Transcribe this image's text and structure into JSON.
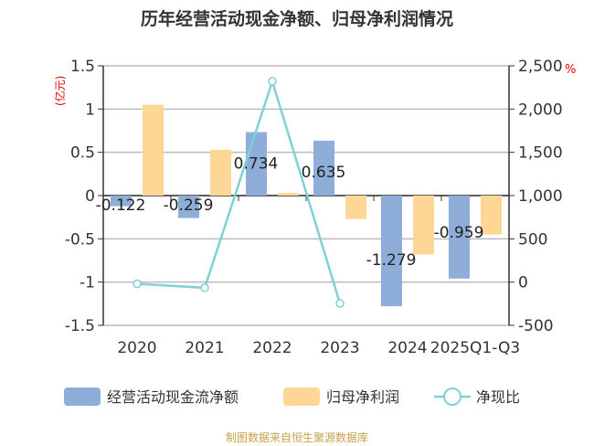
{
  "chart_data": {
    "type": "bar",
    "title": "历年经营活动现金净额、归母净利润情况",
    "categories": [
      "2020",
      "2021",
      "2022",
      "2023",
      "2024",
      "2025Q1-Q3"
    ],
    "left_unit": "(亿元)",
    "right_unit": "%",
    "ylim": [
      -1.5,
      1.5
    ],
    "left_ticks": [
      "1.5",
      "1",
      "0.5",
      "0",
      "-0.5",
      "-1",
      "-1.5"
    ],
    "y2lim": [
      -500,
      2500
    ],
    "right_ticks": [
      "2,500",
      "2,000",
      "1,500",
      "1,000",
      "500",
      "0",
      "-500"
    ],
    "grid": true,
    "legend": "bottom",
    "series": [
      {
        "name": "经营活动现金流净额",
        "type": "bar",
        "color": "#8eadd9",
        "values": [
          -0.122,
          -0.259,
          0.734,
          0.635,
          -1.279,
          -0.959
        ],
        "labels": [
          "-0.122",
          "-0.259",
          "0.734",
          "0.635",
          "-1.279",
          "-0.959"
        ]
      },
      {
        "name": "归母净利润",
        "type": "bar",
        "color": "#fed797",
        "values": [
          1.05,
          0.53,
          0.03,
          -0.27,
          -0.68,
          -0.45
        ]
      },
      {
        "name": "净现比",
        "type": "line",
        "axis": "right",
        "color": "#7fd1d3",
        "values": [
          -20,
          -66,
          2320,
          -246,
          null,
          null
        ]
      }
    ]
  },
  "footer": "制图数据来自恒生聚源数据库"
}
